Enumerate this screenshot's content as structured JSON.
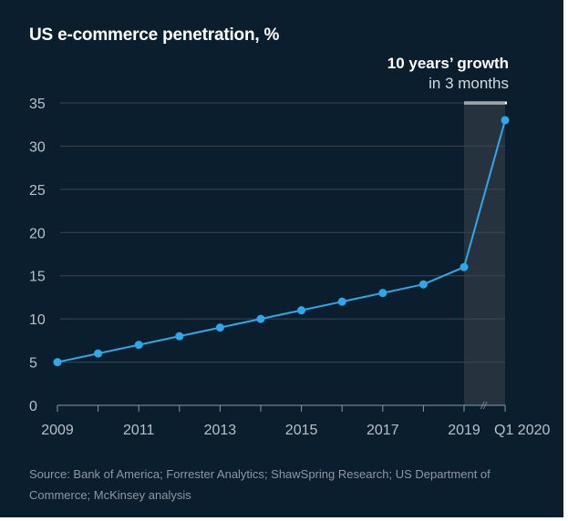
{
  "title": "US e-commerce penetration, %",
  "source": "Source: Bank of America; Forrester Analytics; ShawSpring Research; US Department of Commerce; McKinsey analysis",
  "colors": {
    "background": "#0b1e2d",
    "line": "#2ea8ec",
    "highlight": "#26333f",
    "grid": "#3a4753"
  },
  "chart_data": {
    "type": "line",
    "title": "US e-commerce penetration, %",
    "x": [
      "2009",
      "2010",
      "2011",
      "2012",
      "2013",
      "2014",
      "2015",
      "2016",
      "2017",
      "2018",
      "2019",
      "Q1 2020"
    ],
    "series": [
      {
        "values": [
          5,
          6,
          7,
          8,
          9,
          10,
          11,
          12,
          13,
          14,
          16,
          33
        ]
      }
    ],
    "x_tick_labels": [
      "2009",
      "2011",
      "2013",
      "2015",
      "2017",
      "2019",
      "Q1 2020"
    ],
    "y_ticks": [
      0,
      5,
      10,
      15,
      20,
      25,
      30,
      35
    ],
    "ylim": [
      0,
      35
    ],
    "grid": true,
    "axis_break": "between 2019 and Q1 2020",
    "annotation": {
      "line1": "10 years’ growth",
      "line2": "in 3 months",
      "span": [
        "2019",
        "Q1 2020"
      ]
    }
  }
}
